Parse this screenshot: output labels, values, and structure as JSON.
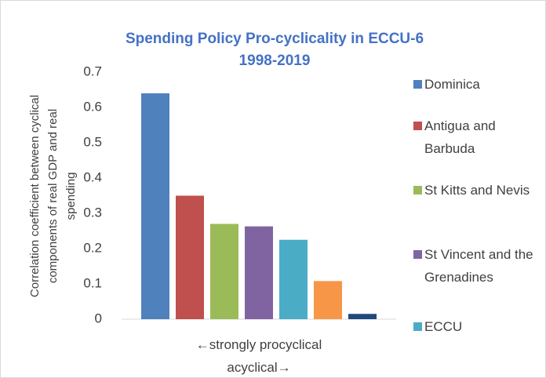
{
  "chart_data": {
    "type": "bar",
    "title": "Spending Policy Pro-cyclicality in ECCU-6",
    "subtitle": "1998-2019",
    "ylabel": [
      "Correlation coefficient between cyclical",
      "components of real GDP and real",
      "spending"
    ],
    "categories": [
      "←strongly procyclical acyclical→"
    ],
    "series": [
      {
        "name": "Dominica",
        "color": "#4f81bd",
        "values": [
          0.64
        ]
      },
      {
        "name": "Antigua and Barbuda",
        "color": "#c0504d",
        "values": [
          0.35
        ]
      },
      {
        "name": "St Kitts and Nevis",
        "color": "#9bbb59",
        "values": [
          0.27
        ]
      },
      {
        "name": "St Vincent and the Grenadines",
        "color": "#8064a2",
        "values": [
          0.263
        ]
      },
      {
        "name": "ECCU",
        "color": "#4bacc6",
        "values": [
          0.225
        ]
      },
      {
        "color": "#f79646",
        "values": [
          0.108
        ]
      },
      {
        "color": "#1f497d",
        "values": [
          0.015
        ]
      }
    ],
    "ylim": [
      0,
      0.7
    ],
    "yticks": [
      0,
      0.1,
      0.2,
      0.3,
      0.4,
      0.5,
      0.6,
      0.7
    ],
    "grid": false
  }
}
